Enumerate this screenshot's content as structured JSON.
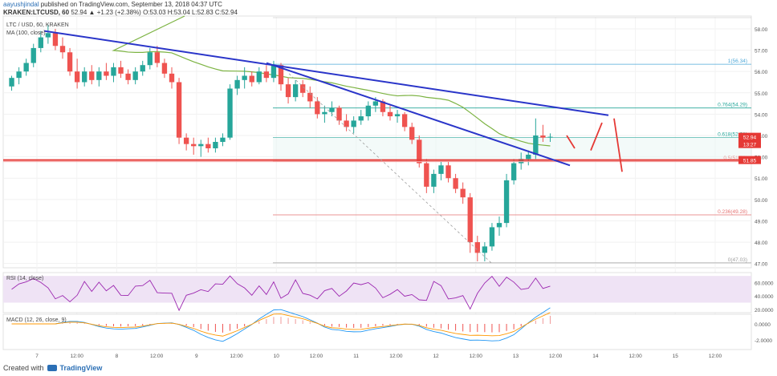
{
  "header": {
    "line1_user": "aayushjindal",
    "line1_rest": "published on TradingView.com, September 13, 2018 04:37 UTC",
    "line2_symbol": "KRAKEN:LTCUSD, 60",
    "line2_values": "52.94 ▲ +1.23 (+2.38%) O:53.03 H:53.04 L:52.83 C:52.94"
  },
  "chart_data": {
    "type": "candlestick",
    "legend": [
      "LTC / USD, 60, KRAKEN",
      "MA (100, close)"
    ],
    "y_ticks": [
      "58.00",
      "57.00",
      "56.00",
      "55.00",
      "54.00",
      "53.00",
      "52.00",
      "51.00",
      "50.00",
      "49.00",
      "48.00",
      "47.00"
    ],
    "ylim": [
      46.8,
      58.6
    ],
    "x_ticks": [
      "7",
      "12:00",
      "8",
      "12:00",
      "9",
      "12:00",
      "10",
      "12:00",
      "11",
      "12:00",
      "12",
      "12:00",
      "13",
      "12:00",
      "14",
      "12:00",
      "15",
      "12:00"
    ],
    "price_labels": [
      {
        "text": "52.94",
        "value": 52.94,
        "color": "#e53935"
      },
      {
        "text": "13:27",
        "value": 52.6,
        "color": "#e53935"
      },
      {
        "text": "51.85",
        "value": 51.85,
        "color": "#e53935"
      }
    ],
    "fib_levels": [
      {
        "label": "1(56.34)",
        "value": 56.34,
        "color": "#4ea8d8"
      },
      {
        "label": "0.764(54.29)",
        "value": 54.29,
        "color": "#26a69a"
      },
      {
        "label": "0.618(52.91)",
        "value": 52.91,
        "color": "#26a69a"
      },
      {
        "label": "0.5(51.79)",
        "value": 51.79,
        "color": "#e53935"
      },
      {
        "label": "0.236(49.28)",
        "value": 49.28,
        "color": "#e57373"
      },
      {
        "label": "0(47.03)",
        "value": 47.03,
        "color": "#9e9e9e"
      }
    ],
    "support_level": 51.85,
    "candles": [
      [
        55.3,
        55.8,
        55.1,
        55.7
      ],
      [
        55.7,
        56.2,
        55.4,
        56.0
      ],
      [
        56.0,
        56.6,
        55.8,
        56.4
      ],
      [
        56.4,
        57.3,
        56.2,
        57.1
      ],
      [
        57.1,
        57.9,
        56.9,
        57.6
      ],
      [
        57.6,
        58.2,
        57.3,
        57.8
      ],
      [
        57.8,
        58.0,
        57.0,
        57.2
      ],
      [
        57.2,
        57.6,
        56.6,
        56.9
      ],
      [
        56.9,
        57.1,
        55.8,
        56.0
      ],
      [
        56.0,
        56.6,
        55.2,
        55.5
      ],
      [
        55.5,
        56.2,
        55.3,
        56.0
      ],
      [
        56.0,
        56.3,
        55.4,
        55.6
      ],
      [
        55.6,
        56.2,
        55.3,
        56.0
      ],
      [
        56.0,
        56.4,
        55.6,
        55.8
      ],
      [
        55.8,
        56.4,
        55.5,
        56.2
      ],
      [
        56.2,
        56.5,
        55.7,
        55.9
      ],
      [
        55.9,
        56.1,
        55.4,
        55.6
      ],
      [
        55.6,
        56.2,
        55.4,
        56.0
      ],
      [
        56.0,
        56.5,
        55.8,
        56.3
      ],
      [
        56.3,
        57.1,
        56.1,
        56.9
      ],
      [
        56.9,
        57.2,
        56.2,
        56.4
      ],
      [
        56.4,
        56.6,
        55.7,
        55.9
      ],
      [
        55.9,
        56.2,
        55.2,
        55.5
      ],
      [
        55.5,
        55.7,
        52.6,
        52.9
      ],
      [
        52.9,
        53.1,
        52.3,
        52.6
      ],
      [
        52.6,
        52.9,
        52.1,
        52.5
      ],
      [
        52.5,
        52.8,
        52.0,
        52.6
      ],
      [
        52.6,
        52.9,
        52.2,
        52.4
      ],
      [
        52.4,
        52.9,
        52.2,
        52.7
      ],
      [
        52.7,
        53.1,
        52.5,
        52.9
      ],
      [
        52.9,
        55.4,
        52.8,
        55.2
      ],
      [
        55.2,
        55.8,
        54.9,
        55.6
      ],
      [
        55.6,
        56.2,
        55.2,
        55.8
      ],
      [
        55.8,
        56.0,
        55.3,
        55.5
      ],
      [
        55.5,
        56.2,
        55.4,
        56.0
      ],
      [
        56.0,
        56.3,
        55.5,
        55.7
      ],
      [
        55.7,
        56.5,
        55.5,
        56.3
      ],
      [
        56.3,
        56.4,
        55.1,
        55.4
      ],
      [
        55.4,
        55.7,
        54.5,
        54.8
      ],
      [
        54.8,
        55.6,
        54.6,
        55.4
      ],
      [
        55.4,
        55.6,
        54.8,
        55.0
      ],
      [
        55.0,
        55.3,
        54.3,
        54.6
      ],
      [
        54.6,
        54.8,
        53.8,
        54.0
      ],
      [
        54.0,
        54.4,
        53.6,
        54.1
      ],
      [
        54.1,
        54.6,
        53.9,
        54.3
      ],
      [
        54.3,
        54.4,
        53.5,
        53.7
      ],
      [
        53.7,
        54.0,
        53.2,
        53.4
      ],
      [
        53.4,
        53.9,
        53.1,
        53.7
      ],
      [
        53.7,
        54.2,
        53.5,
        53.9
      ],
      [
        53.9,
        54.6,
        53.7,
        54.4
      ],
      [
        54.4,
        54.8,
        54.1,
        54.6
      ],
      [
        54.6,
        54.7,
        53.9,
        54.1
      ],
      [
        54.1,
        54.4,
        53.7,
        53.9
      ],
      [
        53.9,
        54.2,
        53.6,
        54.0
      ],
      [
        54.0,
        54.1,
        53.2,
        53.4
      ],
      [
        53.4,
        53.6,
        52.6,
        52.8
      ],
      [
        52.8,
        53.0,
        51.5,
        51.7
      ],
      [
        51.7,
        51.9,
        50.3,
        50.6
      ],
      [
        50.6,
        51.4,
        50.3,
        51.2
      ],
      [
        51.2,
        51.8,
        50.9,
        51.6
      ],
      [
        51.6,
        51.8,
        50.8,
        51.0
      ],
      [
        51.0,
        51.2,
        50.3,
        50.5
      ],
      [
        50.5,
        50.8,
        49.8,
        50.1
      ],
      [
        50.1,
        50.3,
        47.5,
        48.0
      ],
      [
        48.0,
        48.3,
        47.1,
        47.5
      ],
      [
        47.5,
        48.0,
        47.1,
        47.8
      ],
      [
        47.8,
        48.9,
        47.6,
        48.7
      ],
      [
        48.7,
        49.2,
        48.3,
        48.9
      ],
      [
        48.9,
        51.2,
        48.7,
        50.9
      ],
      [
        50.9,
        51.9,
        50.7,
        51.7
      ],
      [
        51.7,
        52.2,
        51.4,
        51.9
      ],
      [
        51.9,
        52.3,
        51.6,
        52.1
      ],
      [
        52.1,
        53.8,
        51.9,
        53.0
      ],
      [
        53.0,
        53.5,
        52.7,
        52.9
      ],
      [
        52.9,
        53.1,
        52.7,
        52.94
      ]
    ],
    "rsi": {
      "label": "RSI (14, close)",
      "y_ticks": [
        "60.0000",
        "40.0000",
        "20.0000"
      ],
      "range": [
        15,
        75
      ]
    },
    "macd": {
      "label": "MACD (12, 26, close, 9)",
      "y_ticks": [
        "0.0000",
        "-2.0000"
      ]
    }
  },
  "footer": {
    "created": "Created with",
    "brand": "TradingView"
  }
}
